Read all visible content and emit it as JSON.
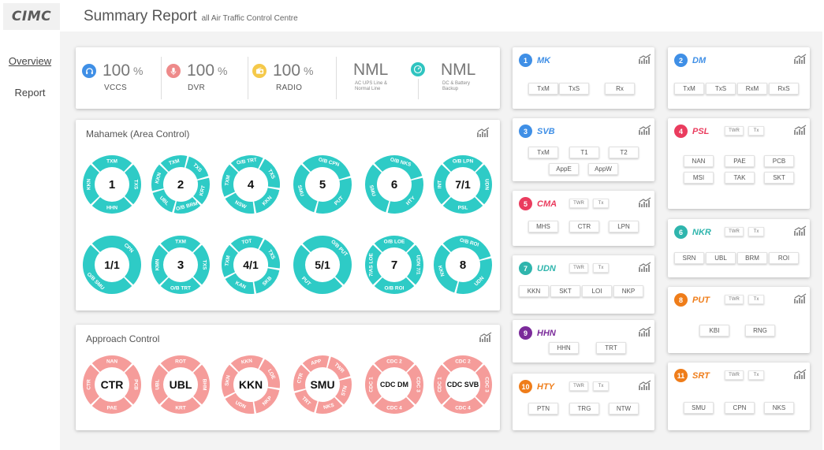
{
  "brand": {
    "logo": "CIMC"
  },
  "header": {
    "title": "Summary Report",
    "subtitle": "all Air Traffic Control Centre"
  },
  "sidebar": {
    "items": [
      {
        "label": "Overview",
        "active": true
      },
      {
        "label": "Report",
        "active": false
      }
    ]
  },
  "status": {
    "vccs": {
      "value": "100",
      "unit": "%",
      "label": "VCCS",
      "color": "#3f8fe6",
      "icon": "headset-icon"
    },
    "dvr": {
      "value": "100",
      "unit": "%",
      "label": "DVR",
      "color": "#ee8a8a",
      "icon": "microphone-icon"
    },
    "radio": {
      "value": "100",
      "unit": "%",
      "label": "RADIO",
      "color": "#f5c94a",
      "icon": "radio-icon"
    },
    "ac_ups": {
      "value": "NML",
      "line1": "AC UPS Line &",
      "line2": "Normal Line"
    },
    "dc_battery": {
      "value": "NML",
      "line1": "DC & Battery",
      "line2": "Backup",
      "color": "#2fc4c0",
      "icon": "gauge-icon"
    }
  },
  "area_control": {
    "title": "Mahamek (Area Control)",
    "color": "#2ecbc6",
    "sectors": [
      {
        "center": "1",
        "labels": [
          "TXM",
          "TXS",
          "HHN",
          "KKN"
        ]
      },
      {
        "center": "2",
        "labels": [
          "TXM",
          "TXS",
          "KRT",
          "O/B BRM",
          "UBL",
          "KKN"
        ]
      },
      {
        "center": "4",
        "labels": [
          "O/B TRT",
          "TXS",
          "KKN",
          "NSW",
          "TXM"
        ]
      },
      {
        "center": "5",
        "labels": [
          "O/B CPN",
          "PUT",
          "SMU"
        ]
      },
      {
        "center": "6",
        "labels": [
          "O/B NKS",
          "HTY",
          "SMU"
        ]
      },
      {
        "center": "7/1",
        "labels": [
          "O/B LPN",
          "UDN",
          "PSL",
          "INT"
        ]
      },
      {
        "center": "1/1",
        "labels": [
          "CPN",
          "O/B SMU"
        ]
      },
      {
        "center": "3",
        "labels": [
          "TXM",
          "TXS",
          "O/B TRT",
          "KMN"
        ]
      },
      {
        "center": "4/1",
        "labels": [
          "TOT",
          "TXS",
          "SKB",
          "KAN",
          "TXM"
        ]
      },
      {
        "center": "5/1",
        "labels": [
          "O/B PUT",
          "PUT"
        ]
      },
      {
        "center": "7",
        "labels": [
          "O/B LOE",
          "UDN 7/1",
          "O/B ROI",
          "7/AS LOE"
        ]
      },
      {
        "center": "8",
        "labels": [
          "O/B ROI",
          "UDN",
          "KKN"
        ]
      }
    ]
  },
  "approach_control": {
    "title": "Approach Control",
    "color": "#f59c9a",
    "sectors": [
      {
        "center": "CTR",
        "labels": [
          "NAN",
          "PCB",
          "PAE",
          "CTR"
        ]
      },
      {
        "center": "UBL",
        "labels": [
          "ROT",
          "BHM",
          "KRT",
          "UBL"
        ]
      },
      {
        "center": "KKN",
        "labels": [
          "KKN",
          "LOE",
          "NKP",
          "UDN",
          "SKN"
        ]
      },
      {
        "center": "SMU",
        "labels": [
          "APP",
          "TWR",
          "STN",
          "NKS",
          "TRT",
          "CTR"
        ]
      },
      {
        "center": "CDC DM",
        "labels": [
          "CDC 2",
          "CDC 3",
          "CDC 4",
          "CDC 1"
        ]
      },
      {
        "center": "CDC SVB",
        "labels": [
          "CDC 2",
          "CDC 3",
          "CDC 4",
          "CDC 1"
        ]
      }
    ]
  },
  "regions": [
    {
      "num": "1",
      "name": "MK",
      "color": "#3f8fe6",
      "tags": [],
      "buttons": [
        "TxM",
        "TxS",
        "Rx"
      ]
    },
    {
      "num": "2",
      "name": "DM",
      "color": "#3f8fe6",
      "tags": [],
      "buttons": [
        "TxM",
        "TxS",
        "RxM",
        "RxS"
      ]
    },
    {
      "num": "3",
      "name": "SVB",
      "color": "#3f8fe6",
      "tags": [],
      "buttons": [
        "TxM",
        "T1",
        "T2",
        "AppE",
        "AppW"
      ]
    },
    {
      "num": "4",
      "name": "PSL",
      "color": "#ea3c5e",
      "tags": [
        "TWR",
        "Tx"
      ],
      "buttons": [
        "NAN",
        "PAE",
        "PCB",
        "MSI",
        "TAK",
        "SKT"
      ]
    },
    {
      "num": "5",
      "name": "CMA",
      "color": "#ea3c5e",
      "tags": [
        "TWR",
        "Tx"
      ],
      "buttons": [
        "MHS",
        "CTR",
        "LPN"
      ]
    },
    {
      "num": "6",
      "name": "NKR",
      "color": "#2fb5ad",
      "tags": [
        "TWR",
        "Tx"
      ],
      "buttons": [
        "SRN",
        "UBL",
        "BRM",
        "ROI"
      ]
    },
    {
      "num": "7",
      "name": "UDN",
      "color": "#2fb5ad",
      "tags": [
        "TWR",
        "Tx"
      ],
      "buttons": [
        "KKN",
        "SKT",
        "LOI",
        "NKP"
      ]
    },
    {
      "num": "8",
      "name": "PUT",
      "color": "#ef7d1a",
      "tags": [
        "TWR",
        "Tx"
      ],
      "buttons": [
        "KBI",
        "RNG"
      ]
    },
    {
      "num": "9",
      "name": "HHN",
      "color": "#7b2b9a",
      "tags": [],
      "buttons": [
        "HHN",
        "TRT"
      ]
    },
    {
      "num": "10",
      "name": "HTY",
      "color": "#ef7d1a",
      "tags": [
        "TWR",
        "Tx"
      ],
      "buttons": [
        "PTN",
        "TRG",
        "NTW"
      ]
    },
    {
      "num": "11",
      "name": "SRT",
      "color": "#ef7d1a",
      "tags": [
        "TWR",
        "Tx"
      ],
      "buttons": [
        "SMU",
        "CPN",
        "NKS"
      ]
    }
  ]
}
